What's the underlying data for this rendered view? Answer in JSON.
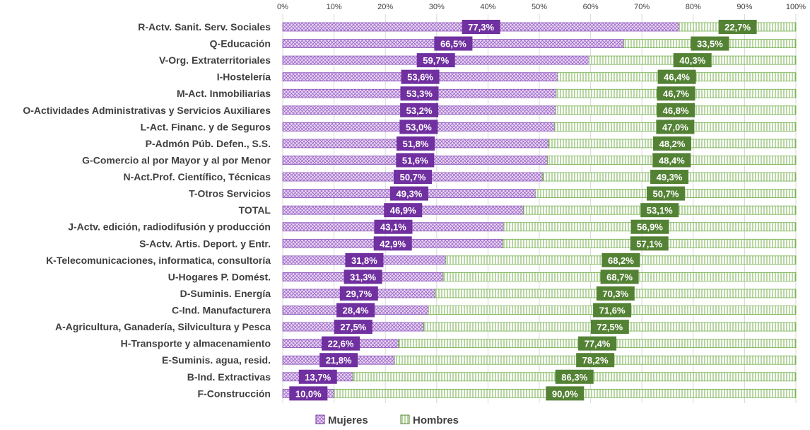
{
  "chart_data": {
    "type": "bar",
    "orientation": "horizontal",
    "stacked": "percent",
    "title": "",
    "xlabel": "",
    "ylabel": "",
    "xlim": [
      0,
      100
    ],
    "grid": true,
    "legend_position": "bottom",
    "x_ticks": [
      "0%",
      "10%",
      "20%",
      "30%",
      "40%",
      "50%",
      "60%",
      "70%",
      "80%",
      "90%",
      "100%"
    ],
    "categories": [
      "R-Actv. Sanit. Serv. Sociales",
      "Q-Educación",
      "V-Org. Extraterritoriales",
      "I-Hostelería",
      "M-Act. Inmobiliarias",
      "O-Actividades Administrativas y Servicios Auxiliares",
      "L-Act. Financ. y de Seguros",
      "P-Admón Púb. Defen., S.S.",
      "G-Comercio al por Mayor y al por Menor",
      "N-Act.Prof. Científico, Técnicas",
      "T-Otros Servicios",
      "TOTAL",
      "J-Actv. edición, radiodifusión y producción",
      "S-Actv. Artis. Deport. y Entr.",
      "K-Telecomunicaciones, informatica, consultoría",
      "U-Hogares P. Domést.",
      "D-Suminis. Energía",
      "C-Ind. Manufacturera",
      "A-Agricultura, Ganadería, Silvicultura y Pesca",
      "H-Transporte y almacenamiento",
      "E-Suminis. agua, resid.",
      "B-Ind. Extractivas",
      "F-Construcción"
    ],
    "series": [
      {
        "name": "Mujeres",
        "color": "#7030a0",
        "values": [
          77.3,
          66.5,
          59.7,
          53.6,
          53.3,
          53.2,
          53.0,
          51.8,
          51.6,
          50.7,
          49.3,
          46.9,
          43.1,
          42.9,
          31.8,
          31.3,
          29.7,
          28.4,
          27.5,
          22.6,
          21.8,
          13.7,
          10.0
        ],
        "labels": [
          "77,3%",
          "66,5%",
          "59,7%",
          "53,6%",
          "53,3%",
          "53,2%",
          "53,0%",
          "51,8%",
          "51,6%",
          "50,7%",
          "49,3%",
          "46,9%",
          "43,1%",
          "42,9%",
          "31,8%",
          "31,3%",
          "29,7%",
          "28,4%",
          "27,5%",
          "22,6%",
          "21,8%",
          "13,7%",
          "10,0%"
        ]
      },
      {
        "name": "Hombres",
        "color": "#548235",
        "values": [
          22.7,
          33.5,
          40.3,
          46.4,
          46.7,
          46.8,
          47.0,
          48.2,
          48.4,
          49.3,
          50.7,
          53.1,
          56.9,
          57.1,
          68.2,
          68.7,
          70.3,
          71.6,
          72.5,
          77.4,
          78.2,
          86.3,
          90.0
        ],
        "labels": [
          "22,7%",
          "33,5%",
          "40,3%",
          "46,4%",
          "46,7%",
          "46,8%",
          "47,0%",
          "48,2%",
          "48,4%",
          "49,3%",
          "50,7%",
          "53,1%",
          "56,9%",
          "57,1%",
          "68,2%",
          "68,7%",
          "70,3%",
          "71,6%",
          "72,5%",
          "77,4%",
          "78,2%",
          "86,3%",
          "90,0%"
        ]
      }
    ]
  }
}
